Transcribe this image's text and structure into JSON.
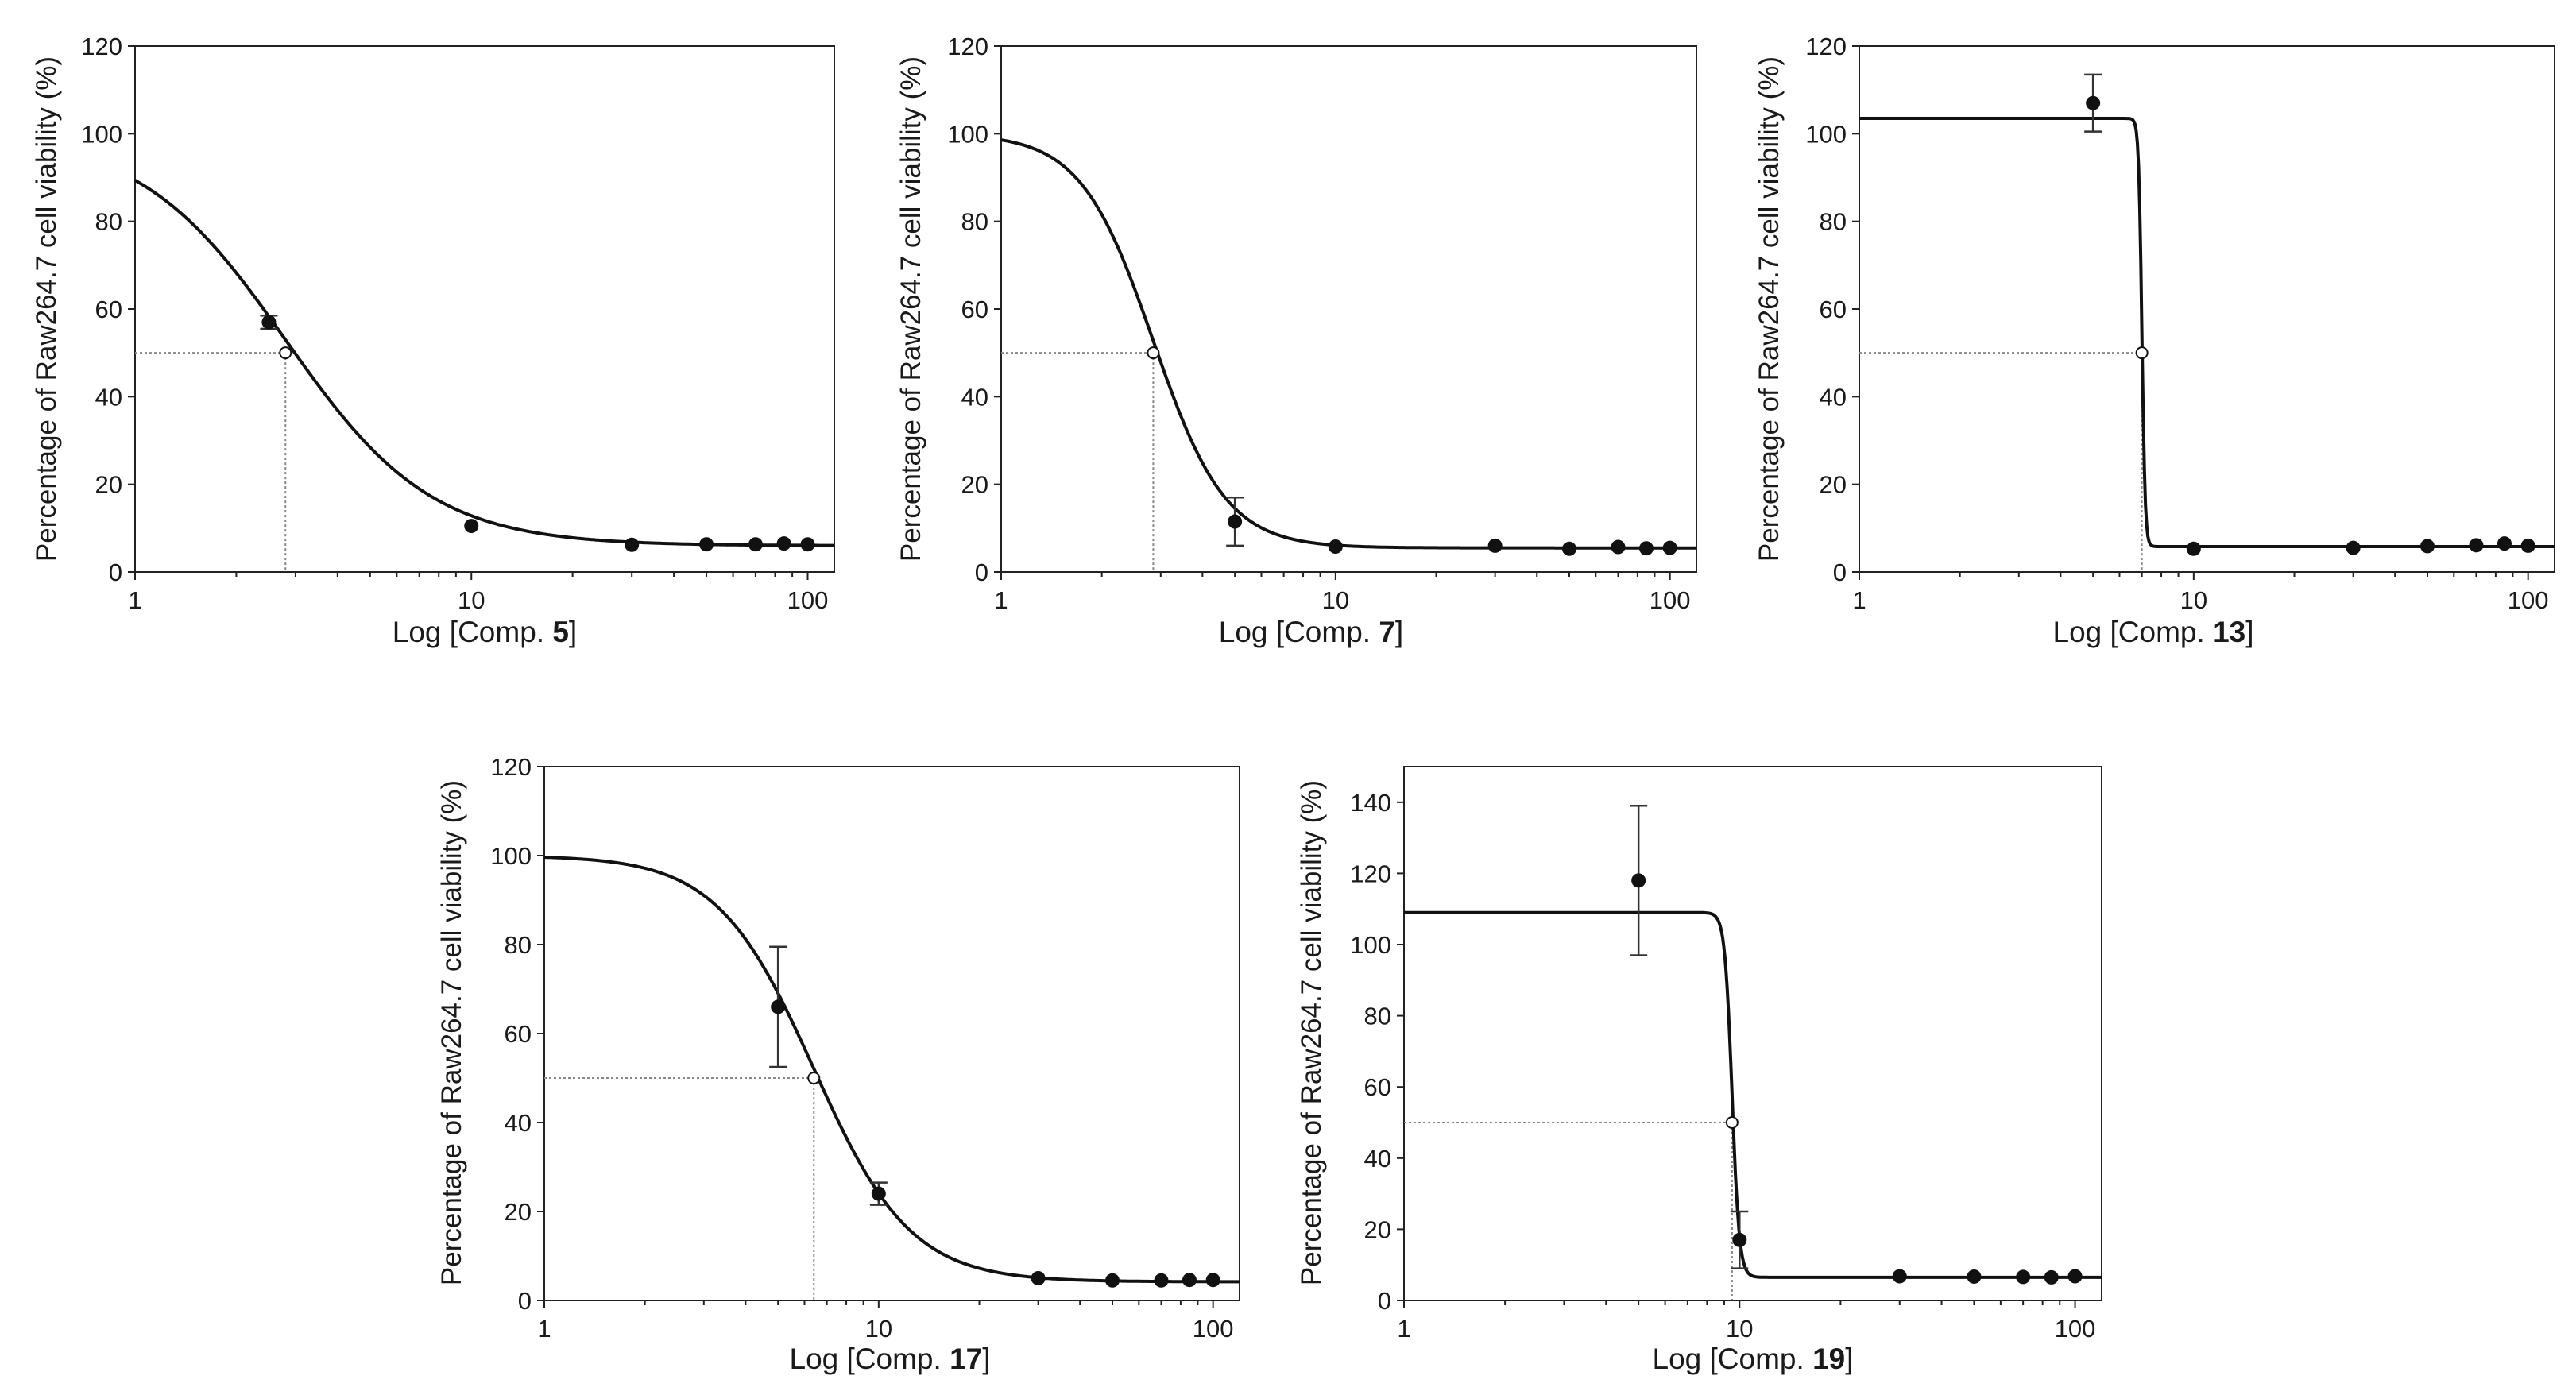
{
  "chart_data": [
    {
      "type": "scatter",
      "id": "comp5",
      "x_scale": "log",
      "xlim": [
        1,
        120
      ],
      "ylim": [
        0,
        120
      ],
      "x_ticks": [
        "1",
        "10",
        "100"
      ],
      "y_ticks": [
        "0",
        "20",
        "40",
        "60",
        "80",
        "100",
        "120"
      ],
      "ylabel": "Percentage of Raw264.7 cell viability (%)",
      "xlabel_prefix": "Log [Comp. ",
      "xlabel_num": "5",
      "xlabel_suffix": "]",
      "points": [
        {
          "x": 2.5,
          "y": 57,
          "err": 1.5
        },
        {
          "x": 10,
          "y": 10.5,
          "err": 0
        },
        {
          "x": 30,
          "y": 6.2,
          "err": 0
        },
        {
          "x": 50,
          "y": 6.3,
          "err": 0
        },
        {
          "x": 70,
          "y": 6.3,
          "err": 0
        },
        {
          "x": 85,
          "y": 6.5,
          "err": 0
        },
        {
          "x": 100,
          "y": 6.3,
          "err": 0
        }
      ],
      "ic50": {
        "x": 2.8,
        "y": 50
      },
      "curve": {
        "top": 100,
        "bottom": 6,
        "ec50": 2.8,
        "hill": 2.0
      }
    },
    {
      "type": "scatter",
      "id": "comp7",
      "x_scale": "log",
      "xlim": [
        1,
        120
      ],
      "ylim": [
        0,
        120
      ],
      "x_ticks": [
        "1",
        "10",
        "100"
      ],
      "y_ticks": [
        "0",
        "20",
        "40",
        "60",
        "80",
        "100",
        "120"
      ],
      "ylabel": "Percentage of Raw264.7 cell viability (%)",
      "xlabel_prefix": "Log [Comp. ",
      "xlabel_num": "7",
      "xlabel_suffix": "]",
      "points": [
        {
          "x": 5,
          "y": 11.5,
          "err": 5.5
        },
        {
          "x": 10,
          "y": 5.8,
          "err": 0
        },
        {
          "x": 30,
          "y": 6.0,
          "err": 0
        },
        {
          "x": 50,
          "y": 5.3,
          "err": 0
        },
        {
          "x": 70,
          "y": 5.7,
          "err": 0
        },
        {
          "x": 85,
          "y": 5.4,
          "err": 0
        },
        {
          "x": 100,
          "y": 5.5,
          "err": 0
        }
      ],
      "ic50": {
        "x": 2.85,
        "y": 50
      },
      "curve": {
        "top": 100,
        "bottom": 5.5,
        "ec50": 2.85,
        "hill": 4.0
      }
    },
    {
      "type": "scatter",
      "id": "comp13",
      "x_scale": "log",
      "xlim": [
        1,
        120
      ],
      "ylim": [
        0,
        120
      ],
      "x_ticks": [
        "1",
        "10",
        "100"
      ],
      "y_ticks": [
        "0",
        "20",
        "40",
        "60",
        "80",
        "100",
        "120"
      ],
      "ylabel": "Percentage of Raw264.7 cell viability (%)",
      "xlabel_prefix": "Log [Comp. ",
      "xlabel_num": "13",
      "xlabel_suffix": "]",
      "points": [
        {
          "x": 5,
          "y": 107,
          "err": 6.5
        },
        {
          "x": 10,
          "y": 5.3,
          "err": 0
        },
        {
          "x": 30,
          "y": 5.5,
          "err": 0
        },
        {
          "x": 50,
          "y": 5.9,
          "err": 0
        },
        {
          "x": 70,
          "y": 6.1,
          "err": 0
        },
        {
          "x": 85,
          "y": 6.5,
          "err": 0
        },
        {
          "x": 100,
          "y": 6.0,
          "err": 0
        }
      ],
      "ic50": {
        "x": 7.0,
        "y": 50
      },
      "curve": {
        "top": 103.5,
        "bottom": 5.8,
        "ec50": 7.0,
        "hill": 90
      }
    },
    {
      "type": "scatter",
      "id": "comp17",
      "x_scale": "log",
      "xlim": [
        1,
        120
      ],
      "ylim": [
        0,
        120
      ],
      "x_ticks": [
        "1",
        "10",
        "100"
      ],
      "y_ticks": [
        "0",
        "20",
        "40",
        "60",
        "80",
        "100",
        "120"
      ],
      "ylabel": "Percentage of Raw264.7 cell viability (%)",
      "xlabel_prefix": "Log [Comp. ",
      "xlabel_num": "17",
      "xlabel_suffix": "]",
      "points": [
        {
          "x": 5,
          "y": 66,
          "err": 13.5
        },
        {
          "x": 10,
          "y": 24,
          "err": 2.5
        },
        {
          "x": 30,
          "y": 5,
          "err": 0
        },
        {
          "x": 50,
          "y": 4.5,
          "err": 0
        },
        {
          "x": 70,
          "y": 4.5,
          "err": 0
        },
        {
          "x": 85,
          "y": 4.6,
          "err": 0
        },
        {
          "x": 100,
          "y": 4.6,
          "err": 0
        }
      ],
      "ic50": {
        "x": 6.4,
        "y": 50
      },
      "curve": {
        "top": 100,
        "bottom": 4.2,
        "ec50": 6.4,
        "hill": 3.0
      }
    },
    {
      "type": "scatter",
      "id": "comp19",
      "x_scale": "log",
      "xlim": [
        1,
        120
      ],
      "ylim": [
        0,
        150
      ],
      "x_ticks": [
        "1",
        "10",
        "100"
      ],
      "y_ticks": [
        "0",
        "20",
        "40",
        "60",
        "80",
        "100",
        "120",
        "140"
      ],
      "ylabel": "Percentage of Raw264.7 cell viability (%)",
      "xlabel_prefix": "Log [Comp. ",
      "xlabel_num": "19",
      "xlabel_suffix": "]",
      "points": [
        {
          "x": 5,
          "y": 118,
          "err": 21
        },
        {
          "x": 10,
          "y": 17,
          "err": 8
        },
        {
          "x": 30,
          "y": 6.8,
          "err": 0
        },
        {
          "x": 50,
          "y": 6.7,
          "err": 0
        },
        {
          "x": 70,
          "y": 6.6,
          "err": 0
        },
        {
          "x": 85,
          "y": 6.5,
          "err": 0
        },
        {
          "x": 100,
          "y": 6.8,
          "err": 0
        }
      ],
      "ic50": {
        "x": 9.5,
        "y": 50
      },
      "curve": {
        "top": 109,
        "bottom": 6.5,
        "ec50": 9.5,
        "hill": 40
      }
    }
  ]
}
